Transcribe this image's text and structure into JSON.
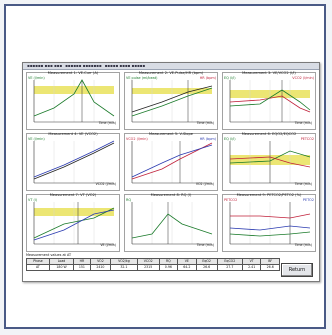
{
  "window": {
    "menu": [
      "▪▪▪▪▪▪ ▪▪▪ ▪▪▪",
      "▪▪▪▪▪▪ ▪▪▪▪▪▪▪",
      "▪▪▪▪▪ ▪▪▪▪ ▪▪▪▪▪"
    ]
  },
  "colors": {
    "frame": "#4a5a86",
    "band": "#e9e25a",
    "primary": "#1a7a2a",
    "secondary": "#c0203a",
    "tertiary": "#2a3ab0",
    "dark": "#222222"
  },
  "plots": [
    {
      "title": "Measurement 1: VE.Curr (A)",
      "y_label": "VE (l/min)",
      "r_label": "",
      "x_label": "Time (min)"
    },
    {
      "title": "Measurement 2: VE.Pulse/HR (bpm)",
      "y_label": "VE pulse (ml/beat)",
      "r_label": "HR (bpm)",
      "x_label": "Time (min)"
    },
    {
      "title": "Measurement 3: VE/VCO2 (l/l)",
      "y_label": "EQ (l/l)",
      "r_label": "VCO2 (l/min)",
      "x_label": "Time (min)"
    },
    {
      "title": "Measurement 4: VE (VCO2)",
      "y_label": "VE (l/min)",
      "r_label": "",
      "x_label": "VCO2 (l/min)"
    },
    {
      "title": "Measurement 5: V-Slope",
      "y_label": "VCO2 (l/min)",
      "r_label": "HR (bpm)",
      "x_label": "VO2 (l/min)"
    },
    {
      "title": "Measurement 6: EQO2/EQCO2",
      "y_label": "EQ (l/l)",
      "r_label": "PETCO2",
      "x_label": "Time (min)"
    },
    {
      "title": "Measurement 7: VT (VO2)",
      "y_label": "VT (l)",
      "r_label": "",
      "x_label": "VE (l/min)"
    },
    {
      "title": "Measurement 8: RQ (l)",
      "y_label": "RQ",
      "r_label": "",
      "x_label": "Time (min)"
    },
    {
      "title": "Measurement 9: PETCO2/PETO2 (%)",
      "y_label": "PETCO2",
      "r_label": "PETO2",
      "x_label": "Time (min)"
    }
  ],
  "table": {
    "label": "Measurement values at AT",
    "headers": [
      "Phase",
      "Load",
      "HR",
      "VO2",
      "VO2/kg",
      "VCO2",
      "RQ",
      "VE",
      "EqO2",
      "EqCO2",
      "VT",
      "BF"
    ],
    "rows": [
      [
        "AT",
        "180 W",
        "151",
        "2410",
        "32.1",
        "2315",
        "0.96",
        "64.2",
        "26.6",
        "27.7",
        "2.41",
        "26.6"
      ]
    ]
  },
  "return_label": "Return"
}
